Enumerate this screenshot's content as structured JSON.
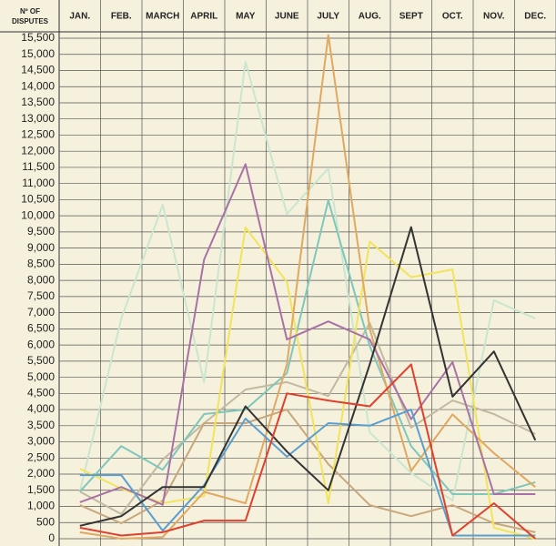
{
  "chart_data": {
    "type": "line",
    "ylabel": [
      "Nº OF",
      "DISPUTES"
    ],
    "categories": [
      "JAN.",
      "FEB.",
      "MARCH",
      "APRIL",
      "MAY",
      "JUNE",
      "JULY",
      "AUG.",
      "SEPT",
      "OCT.",
      "NOV.",
      "DEC."
    ],
    "ylim": [
      0,
      15500
    ],
    "yticks": [
      0,
      500,
      {
        "value": 1000,
        "label": "1,000"
      },
      {
        "value": 1500,
        "label": "1,500"
      },
      {
        "value": 2000,
        "label": "2,000"
      },
      {
        "value": 2500,
        "label": "2,500"
      },
      {
        "value": 3000,
        "label": "3,000"
      },
      {
        "value": 3500,
        "label": "3,500"
      },
      {
        "value": 4000,
        "label": "4,000"
      },
      {
        "value": 4500,
        "label": "4,500"
      },
      {
        "value": 5000,
        "label": "5,000"
      },
      {
        "value": 5500,
        "label": "5,500"
      },
      {
        "value": 6000,
        "label": "6,000"
      },
      {
        "value": 6500,
        "label": "6,500"
      },
      {
        "value": 7000,
        "label": "7,000"
      },
      {
        "value": 7500,
        "label": "7,500"
      },
      {
        "value": 8000,
        "label": "8,000"
      },
      {
        "value": 8500,
        "label": "8,500"
      },
      {
        "value": 9000,
        "label": "9,000"
      },
      {
        "value": 9500,
        "label": "9,500"
      },
      {
        "value": 10000,
        "label": "10,000"
      },
      {
        "value": 10500,
        "label": "10,500"
      },
      {
        "value": 11000,
        "label": "11,000"
      },
      {
        "value": 11500,
        "label": "11,500"
      },
      {
        "value": 12000,
        "label": "12,000"
      },
      {
        "value": 12500,
        "label": "12,500"
      },
      {
        "value": 13000,
        "label": "13,000"
      },
      {
        "value": 13500,
        "label": "13,500"
      },
      {
        "value": 14000,
        "label": "14,000"
      },
      {
        "value": 14500,
        "label": "14,500"
      },
      {
        "value": 15000,
        "label": "15,000"
      },
      {
        "value": 15500,
        "label": "15,500"
      }
    ],
    "grid": true,
    "series": [
      {
        "color": "#c9e6cf",
        "values": [
          1460,
          6820,
          10340,
          4850,
          14770,
          10060,
          11470,
          3300,
          2030,
          1180,
          7380,
          6820
        ]
      },
      {
        "color": "#c2b9a0",
        "values": [
          1460,
          760,
          2450,
          3580,
          4620,
          4850,
          4420,
          6680,
          3440,
          4280,
          3860,
          3240
        ]
      },
      {
        "color": "#c9a77c",
        "values": [
          1040,
          480,
          1180,
          3580,
          3580,
          4000,
          2310,
          1040,
          700,
          1040,
          480,
          200
        ]
      },
      {
        "color": "#7fc7bb",
        "values": [
          1460,
          2870,
          2140,
          3860,
          4000,
          5130,
          10480,
          5970,
          2870,
          1380,
          1380,
          1750
        ]
      },
      {
        "color": "#f2e45a",
        "values": [
          2170,
          1550,
          1100,
          1320,
          9640,
          7950,
          1100,
          9200,
          8100,
          8340,
          340,
          0
        ]
      },
      {
        "color": "#e0a860",
        "values": [
          200,
          0,
          50,
          1450,
          1100,
          5400,
          15600,
          6500,
          2100,
          3850,
          2650,
          1600
        ]
      },
      {
        "color": "#a872a6",
        "values": [
          1130,
          1600,
          1050,
          8650,
          11600,
          6170,
          6730,
          6170,
          3700,
          5470,
          1380,
          1380
        ]
      },
      {
        "color": "#5b9fd0",
        "values": [
          1970,
          1970,
          250,
          1660,
          3720,
          2540,
          3580,
          3500,
          4000,
          100,
          100,
          100
        ]
      },
      {
        "color": "#333333",
        "values": [
          400,
          700,
          1600,
          1600,
          4100,
          2700,
          1500,
          5400,
          9650,
          4400,
          5800,
          3050
        ]
      },
      {
        "color": "#e0402c",
        "values": [
          340,
          100,
          200,
          560,
          560,
          4500,
          4280,
          4100,
          5400,
          100,
          1100,
          0
        ]
      }
    ]
  }
}
